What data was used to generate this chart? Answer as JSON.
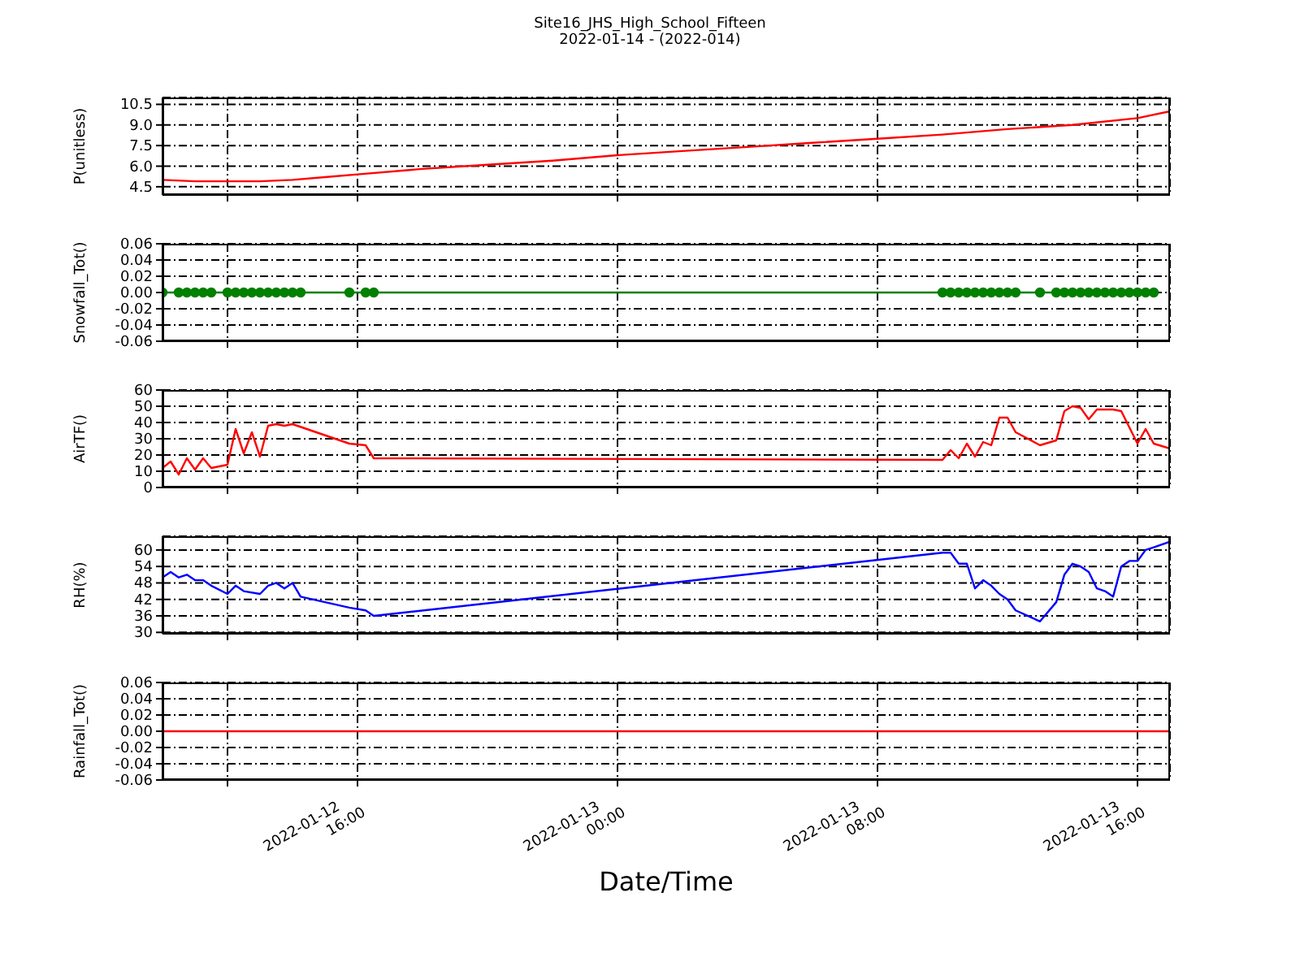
{
  "chart_data": [
    {
      "type": "line",
      "title": "Site16_JHS_High_School_Fifteen",
      "subtitle": "2022-01-14 - (2022-014)",
      "ylabel": "P(unitless)",
      "tick_labels": "y",
      "grid": true,
      "marker": "none",
      "line_style": "solid",
      "xlim": [
        "2022-01-12T10:00",
        "2022-01-13T17:00"
      ],
      "xticks": [
        {
          "value": "2022-01-12T12:00",
          "label": null
        },
        {
          "value": "2022-01-12T16:00",
          "label": null
        },
        {
          "value": "2022-01-13T00:00",
          "label": null
        },
        {
          "value": "2022-01-13T08:00",
          "label": null
        },
        {
          "value": "2022-01-13T16:00",
          "label": null
        }
      ],
      "ylim": [
        3.9,
        11.0
      ],
      "yticks": [
        4.5,
        {
          "value": 6,
          "label": "6.0"
        },
        7.5,
        {
          "value": 9,
          "label": "9.0"
        },
        10.5
      ],
      "x": [
        "2022-01-12T10:00",
        "2022-01-12T11:00",
        "2022-01-12T12:00",
        "2022-01-12T13:00",
        "2022-01-12T14:00",
        "2022-01-12T15:00",
        "2022-01-12T16:00",
        "2022-01-12T18:00",
        "2022-01-12T20:00",
        "2022-01-12T22:00",
        "2022-01-13T00:00",
        "2022-01-13T02:00",
        "2022-01-13T04:00",
        "2022-01-13T06:00",
        "2022-01-13T08:00",
        "2022-01-13T10:00",
        "2022-01-13T12:00",
        "2022-01-13T14:00",
        "2022-01-13T16:00",
        "2022-01-13T17:00"
      ],
      "series": [
        {
          "color": "#ff0000",
          "values": [
            5.0,
            4.9,
            4.9,
            4.9,
            5.0,
            5.2,
            5.4,
            5.8,
            6.1,
            6.4,
            6.8,
            7.1,
            7.4,
            7.7,
            8.0,
            8.3,
            8.7,
            9.0,
            9.5,
            10.0
          ]
        }
      ]
    },
    {
      "type": "line",
      "ylabel": "Snowfall_Tot()",
      "tick_labels": "y",
      "grid": true,
      "marker": "circle",
      "line_style": "solid",
      "xlim": [
        "2022-01-12T10:00",
        "2022-01-13T17:00"
      ],
      "xticks": [
        {
          "value": "2022-01-12T12:00",
          "label": null
        },
        {
          "value": "2022-01-12T16:00",
          "label": null
        },
        {
          "value": "2022-01-13T00:00",
          "label": null
        },
        {
          "value": "2022-01-13T08:00",
          "label": null
        },
        {
          "value": "2022-01-13T16:00",
          "label": null
        }
      ],
      "ylim": [
        -0.06,
        0.06
      ],
      "yticks": [
        -0.06,
        -0.04,
        -0.02,
        {
          "value": 0,
          "label": "0.00"
        },
        0.02,
        0.04,
        0.06
      ],
      "x": [
        "2022-01-12T10:00",
        "2022-01-12T10:30",
        "2022-01-12T10:45",
        "2022-01-12T11:00",
        "2022-01-12T11:15",
        "2022-01-12T11:30",
        "2022-01-12T12:00",
        "2022-01-12T12:15",
        "2022-01-12T12:30",
        "2022-01-12T12:45",
        "2022-01-12T13:00",
        "2022-01-12T13:15",
        "2022-01-12T13:30",
        "2022-01-12T13:45",
        "2022-01-12T14:00",
        "2022-01-12T14:15",
        "2022-01-12T15:45",
        "2022-01-12T16:15",
        "2022-01-12T16:30",
        "2022-01-13T10:00",
        "2022-01-13T10:15",
        "2022-01-13T10:30",
        "2022-01-13T10:45",
        "2022-01-13T11:00",
        "2022-01-13T11:15",
        "2022-01-13T11:30",
        "2022-01-13T11:45",
        "2022-01-13T12:00",
        "2022-01-13T12:15",
        "2022-01-13T13:00",
        "2022-01-13T13:30",
        "2022-01-13T13:45",
        "2022-01-13T14:00",
        "2022-01-13T14:15",
        "2022-01-13T14:30",
        "2022-01-13T14:45",
        "2022-01-13T15:00",
        "2022-01-13T15:15",
        "2022-01-13T15:30",
        "2022-01-13T15:45",
        "2022-01-13T16:00",
        "2022-01-13T16:15",
        "2022-01-13T16:30"
      ],
      "series": [
        {
          "color": "#008000",
          "values": [
            0,
            0,
            0,
            0,
            0,
            0,
            0,
            0,
            0,
            0,
            0,
            0,
            0,
            0,
            0,
            0,
            0,
            0,
            0,
            0,
            0,
            0,
            0,
            0,
            0,
            0,
            0,
            0,
            0,
            0,
            0,
            0,
            0,
            0,
            0,
            0,
            0,
            0,
            0,
            0,
            0,
            0,
            0
          ]
        }
      ]
    },
    {
      "type": "line",
      "ylabel": "AirTF()",
      "tick_labels": "y",
      "grid": true,
      "marker": "none",
      "line_style": "solid",
      "xlim": [
        "2022-01-12T10:00",
        "2022-01-13T17:00"
      ],
      "xticks": [
        {
          "value": "2022-01-12T12:00",
          "label": null
        },
        {
          "value": "2022-01-12T16:00",
          "label": null
        },
        {
          "value": "2022-01-13T00:00",
          "label": null
        },
        {
          "value": "2022-01-13T08:00",
          "label": null
        },
        {
          "value": "2022-01-13T16:00",
          "label": null
        }
      ],
      "ylim": [
        0,
        60
      ],
      "yticks": [
        0,
        10,
        20,
        30,
        40,
        50,
        60
      ],
      "x": [
        "2022-01-12T10:00",
        "2022-01-12T10:15",
        "2022-01-12T10:30",
        "2022-01-12T10:45",
        "2022-01-12T11:00",
        "2022-01-12T11:15",
        "2022-01-12T11:30",
        "2022-01-12T12:00",
        "2022-01-12T12:15",
        "2022-01-12T12:30",
        "2022-01-12T12:45",
        "2022-01-12T13:00",
        "2022-01-12T13:15",
        "2022-01-12T13:30",
        "2022-01-12T13:45",
        "2022-01-12T14:00",
        "2022-01-12T15:45",
        "2022-01-12T16:15",
        "2022-01-12T16:30",
        "2022-01-13T10:00",
        "2022-01-13T10:15",
        "2022-01-13T10:30",
        "2022-01-13T10:45",
        "2022-01-13T11:00",
        "2022-01-13T11:15",
        "2022-01-13T11:30",
        "2022-01-13T11:45",
        "2022-01-13T12:00",
        "2022-01-13T12:15",
        "2022-01-13T13:00",
        "2022-01-13T13:30",
        "2022-01-13T13:45",
        "2022-01-13T14:00",
        "2022-01-13T14:15",
        "2022-01-13T14:30",
        "2022-01-13T14:45",
        "2022-01-13T15:15",
        "2022-01-13T15:30",
        "2022-01-13T16:00",
        "2022-01-13T16:15",
        "2022-01-13T16:30",
        "2022-01-13T17:00"
      ],
      "series": [
        {
          "color": "#ff0000",
          "values": [
            12,
            16,
            8,
            18,
            11,
            18,
            12,
            14,
            36,
            21,
            34,
            19,
            38,
            39,
            38,
            39,
            27,
            26,
            18,
            17,
            23,
            18,
            27,
            19,
            28,
            26,
            43,
            43,
            34,
            26,
            29,
            47,
            50,
            49,
            42,
            48,
            48,
            47,
            27,
            36,
            27,
            24
          ]
        }
      ]
    },
    {
      "type": "line",
      "ylabel": "RH(%)",
      "tick_labels": "y",
      "grid": true,
      "marker": "none",
      "line_style": "solid",
      "xlim": [
        "2022-01-12T10:00",
        "2022-01-13T17:00"
      ],
      "xticks": [
        {
          "value": "2022-01-12T12:00",
          "label": null
        },
        {
          "value": "2022-01-12T16:00",
          "label": null
        },
        {
          "value": "2022-01-13T00:00",
          "label": null
        },
        {
          "value": "2022-01-13T08:00",
          "label": null
        },
        {
          "value": "2022-01-13T16:00",
          "label": null
        }
      ],
      "ylim": [
        29.5,
        65
      ],
      "yticks": [
        30,
        36,
        42,
        48,
        54,
        60
      ],
      "x": [
        "2022-01-12T10:00",
        "2022-01-12T10:15",
        "2022-01-12T10:30",
        "2022-01-12T10:45",
        "2022-01-12T11:00",
        "2022-01-12T11:15",
        "2022-01-12T11:30",
        "2022-01-12T12:00",
        "2022-01-12T12:15",
        "2022-01-12T12:30",
        "2022-01-12T13:00",
        "2022-01-12T13:15",
        "2022-01-12T13:30",
        "2022-01-12T13:45",
        "2022-01-12T14:00",
        "2022-01-12T14:15",
        "2022-01-12T15:45",
        "2022-01-12T16:15",
        "2022-01-12T16:30",
        "2022-01-13T10:00",
        "2022-01-13T10:15",
        "2022-01-13T10:30",
        "2022-01-13T10:45",
        "2022-01-13T11:00",
        "2022-01-13T11:15",
        "2022-01-13T11:30",
        "2022-01-13T11:45",
        "2022-01-13T12:00",
        "2022-01-13T12:15",
        "2022-01-13T13:00",
        "2022-01-13T13:30",
        "2022-01-13T13:45",
        "2022-01-13T14:00",
        "2022-01-13T14:15",
        "2022-01-13T14:30",
        "2022-01-13T14:45",
        "2022-01-13T15:00",
        "2022-01-13T15:15",
        "2022-01-13T15:30",
        "2022-01-13T15:45",
        "2022-01-13T16:00",
        "2022-01-13T16:15",
        "2022-01-13T16:30",
        "2022-01-13T17:00"
      ],
      "series": [
        {
          "color": "#0000ff",
          "values": [
            50,
            52,
            50,
            51,
            49,
            49,
            47,
            44,
            47,
            45,
            44,
            47,
            48,
            46,
            48,
            43,
            39,
            38,
            36,
            59,
            59,
            55,
            55,
            46,
            49,
            47,
            44,
            42,
            38,
            34,
            41,
            51,
            55,
            54,
            52,
            46,
            45,
            43,
            54,
            56,
            56,
            60,
            61,
            63
          ]
        }
      ]
    },
    {
      "type": "line",
      "ylabel": "Rainfall_Tot()",
      "xlabel": "Date/Time",
      "grid": true,
      "marker": "none",
      "line_style": "solid",
      "xlim": [
        "2022-01-12T10:00",
        "2022-01-13T17:00"
      ],
      "xticks": [
        {
          "value": "2022-01-12T12:00",
          "label": null
        },
        {
          "value": "2022-01-12T16:00",
          "label": "2022-01-12\n16:00"
        },
        {
          "value": "2022-01-13T00:00",
          "label": "2022-01-13\n00:00"
        },
        {
          "value": "2022-01-13T08:00",
          "label": "2022-01-13\n08:00"
        },
        {
          "value": "2022-01-13T16:00",
          "label": "2022-01-13\n16:00"
        }
      ],
      "ylim": [
        -0.06,
        0.06
      ],
      "yticks": [
        -0.06,
        -0.04,
        -0.02,
        {
          "value": 0,
          "label": "0.00"
        },
        0.02,
        0.04,
        0.06
      ],
      "x": [
        "2022-01-12T10:00",
        "2022-01-12T12:00",
        "2022-01-12T14:00",
        "2022-01-12T16:30",
        "2022-01-13T10:00",
        "2022-01-13T12:00",
        "2022-01-13T14:00",
        "2022-01-13T16:00",
        "2022-01-13T17:00"
      ],
      "series": [
        {
          "color": "#ff0000",
          "values": [
            0,
            0,
            0,
            0,
            0,
            0,
            0,
            0,
            0
          ]
        }
      ]
    }
  ]
}
